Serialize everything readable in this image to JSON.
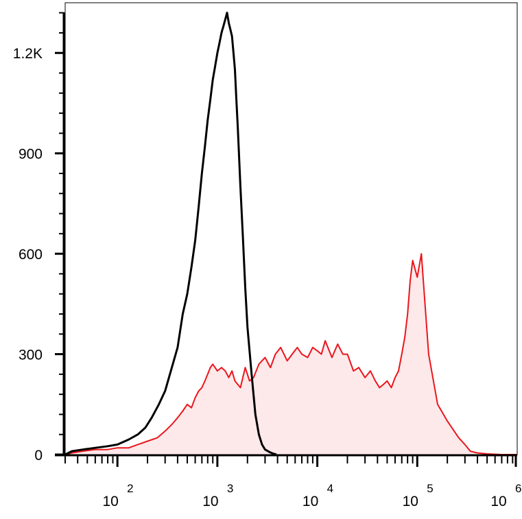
{
  "chart_data": {
    "type": "area",
    "title": "",
    "xlabel": "",
    "ylabel": "",
    "xscale": "log",
    "xlim": [
      30,
      1000000
    ],
    "ylim": [
      0,
      1350
    ],
    "grid": false,
    "legend": "none",
    "y_ticks": [
      {
        "value": 0,
        "label": "0"
      },
      {
        "value": 300,
        "label": "300"
      },
      {
        "value": 600,
        "label": "600"
      },
      {
        "value": 900,
        "label": "900"
      },
      {
        "value": 1200,
        "label": "1.2K"
      }
    ],
    "x_ticks": [
      {
        "value": 100,
        "base": "10",
        "exp": "2"
      },
      {
        "value": 1000,
        "base": "10",
        "exp": "3"
      },
      {
        "value": 10000,
        "base": "10",
        "exp": "4"
      },
      {
        "value": 100000,
        "base": "10",
        "exp": "5"
      },
      {
        "value": 1000000,
        "base": "10",
        "exp": "6"
      }
    ],
    "series": [
      {
        "color": "#000000",
        "fill": "none",
        "x": [
          30,
          35,
          45,
          60,
          80,
          100,
          130,
          160,
          190,
          220,
          260,
          300,
          350,
          400,
          450,
          500,
          550,
          600,
          650,
          700,
          750,
          800,
          850,
          900,
          950,
          1000,
          1050,
          1100,
          1150,
          1200,
          1250,
          1300,
          1350,
          1400,
          1450,
          1500,
          1550,
          1600,
          1700,
          1800,
          1900,
          2000,
          2200,
          2400,
          2600,
          2800,
          3000,
          3300,
          3600,
          3900
        ],
        "y": [
          0,
          10,
          15,
          20,
          25,
          30,
          45,
          60,
          80,
          110,
          150,
          190,
          260,
          320,
          420,
          480,
          560,
          640,
          740,
          840,
          920,
          1000,
          1060,
          1120,
          1160,
          1200,
          1230,
          1260,
          1280,
          1300,
          1320,
          1290,
          1270,
          1250,
          1200,
          1150,
          1060,
          980,
          800,
          650,
          500,
          380,
          240,
          120,
          60,
          30,
          15,
          8,
          3,
          0
        ]
      },
      {
        "color": "#e8161b",
        "fill": "#fde8ea",
        "x": [
          30,
          35,
          45,
          60,
          80,
          100,
          130,
          160,
          200,
          250,
          300,
          350,
          400,
          450,
          500,
          550,
          600,
          650,
          700,
          750,
          800,
          850,
          900,
          1000,
          1100,
          1200,
          1300,
          1400,
          1500,
          1700,
          1900,
          2100,
          2300,
          2600,
          3000,
          3400,
          3800,
          4300,
          5000,
          5600,
          6300,
          7000,
          8000,
          9000,
          10000,
          11000,
          12000,
          14000,
          16000,
          18000,
          20000,
          23000,
          26000,
          30000,
          34000,
          38000,
          42000,
          46000,
          50000,
          55000,
          60000,
          65000,
          70000,
          75000,
          80000,
          85000,
          90000,
          100000,
          110000,
          130000,
          160000,
          200000,
          260000,
          300000,
          340000,
          400000,
          500000,
          700000,
          1000000
        ],
        "y": [
          0,
          5,
          10,
          15,
          15,
          20,
          20,
          30,
          40,
          50,
          70,
          90,
          110,
          130,
          150,
          140,
          170,
          190,
          200,
          220,
          240,
          260,
          270,
          250,
          260,
          250,
          230,
          250,
          220,
          200,
          260,
          220,
          230,
          270,
          290,
          260,
          300,
          320,
          280,
          300,
          320,
          300,
          290,
          320,
          310,
          300,
          340,
          290,
          330,
          300,
          300,
          250,
          260,
          230,
          250,
          220,
          200,
          210,
          220,
          200,
          230,
          250,
          300,
          350,
          420,
          520,
          580,
          530,
          600,
          300,
          150,
          100,
          50,
          30,
          10,
          5,
          2,
          0,
          0
        ]
      }
    ]
  }
}
